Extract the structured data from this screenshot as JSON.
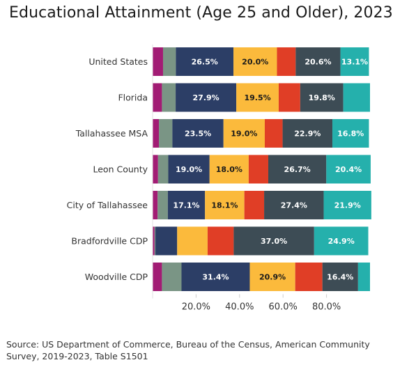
{
  "chart_data": {
    "type": "bar",
    "orientation": "horizontal",
    "stacked": true,
    "title": "Educational Attainment (Age 25 and Older), 2023",
    "categories": [
      "United States",
      "Florida",
      "Tallahassee MSA",
      "Leon County",
      "City of Tallahassee",
      "Bradfordville CDP",
      "Woodville CDP"
    ],
    "series": [
      {
        "color": "#A21C74",
        "values": [
          4.8,
          4.3,
          2.9,
          2.5,
          2.3,
          0.9,
          4.3
        ],
        "labels": [
          "",
          "",
          "",
          "",
          "",
          "",
          ""
        ]
      },
      {
        "color": "#7A9585",
        "values": [
          5.9,
          6.3,
          6.2,
          4.7,
          4.7,
          0.4,
          9.0
        ],
        "labels": [
          "",
          "",
          "",
          "",
          "",
          "",
          ""
        ]
      },
      {
        "color": "#2C3E66",
        "values": [
          26.5,
          27.9,
          23.5,
          19.0,
          17.1,
          10.0,
          31.4
        ],
        "labels": [
          "26.5%",
          "27.9%",
          "23.5%",
          "19.0%",
          "17.1%",
          "",
          "31.4%"
        ]
      },
      {
        "color": "#FBBA3C",
        "values": [
          20.0,
          19.5,
          19.0,
          18.0,
          18.1,
          14.0,
          20.9
        ],
        "labels": [
          "20.0%",
          "19.5%",
          "19.0%",
          "18.0%",
          "18.1%",
          "",
          "20.9%"
        ]
      },
      {
        "color": "#E03E26",
        "values": [
          8.6,
          9.9,
          8.2,
          9.0,
          9.1,
          12.0,
          12.5
        ],
        "labels": [
          "",
          "",
          "",
          "",
          "",
          "",
          ""
        ]
      },
      {
        "color": "#3D4C55",
        "values": [
          20.6,
          19.8,
          22.9,
          26.7,
          27.4,
          37.0,
          16.4
        ],
        "labels": [
          "20.6%",
          "19.8%",
          "22.9%",
          "26.7%",
          "27.4%",
          "37.0%",
          "16.4%"
        ]
      },
      {
        "color": "#25B0AC",
        "values": [
          13.1,
          12.3,
          16.8,
          20.4,
          21.9,
          24.9,
          5.5
        ],
        "labels": [
          "13.1%",
          "",
          "16.8%",
          "20.4%",
          "21.9%",
          "24.9%",
          ""
        ]
      }
    ],
    "xlim": [
      0,
      100
    ],
    "xticks": [
      20,
      40,
      60,
      80
    ],
    "xtick_labels": [
      "20.0%",
      "40.0%",
      "60.0%",
      "80.0%"
    ],
    "legend": "none",
    "grid": false
  },
  "source_text": "Source: US Department of Commerce, Bureau of the Census, American Community Survey, 2019-2023, Table S1501"
}
